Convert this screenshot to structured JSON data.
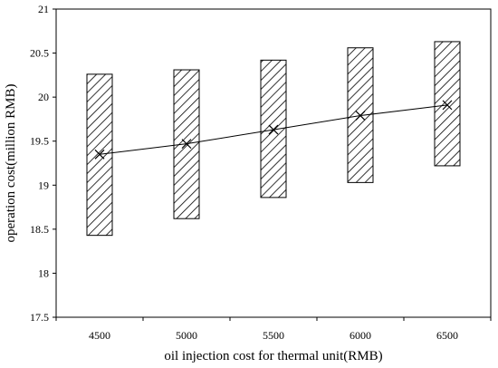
{
  "chart_data": {
    "type": "range-bar",
    "title": "",
    "xlabel": "oil injection cost for thermal unit(RMB)",
    "ylabel": "operation cost(million RMB)",
    "categories": [
      "4500",
      "5000",
      "5500",
      "6000",
      "6500"
    ],
    "ylim": [
      17.5,
      21
    ],
    "yticks": [
      "17.5",
      "18",
      "18.5",
      "19",
      "19.5",
      "20",
      "20.5",
      "21"
    ],
    "grid": false,
    "legend": "none",
    "series": [
      {
        "type": "range",
        "low": [
          18.43,
          18.62,
          18.86,
          19.03,
          19.22
        ],
        "high": [
          20.26,
          20.31,
          20.42,
          20.56,
          20.63
        ]
      },
      {
        "type": "line",
        "marker": "x",
        "values": [
          19.35,
          19.47,
          19.63,
          19.79,
          19.91
        ]
      }
    ],
    "colors": {
      "hatch": "#000000",
      "line": "#000000",
      "background": "#ffffff"
    }
  }
}
